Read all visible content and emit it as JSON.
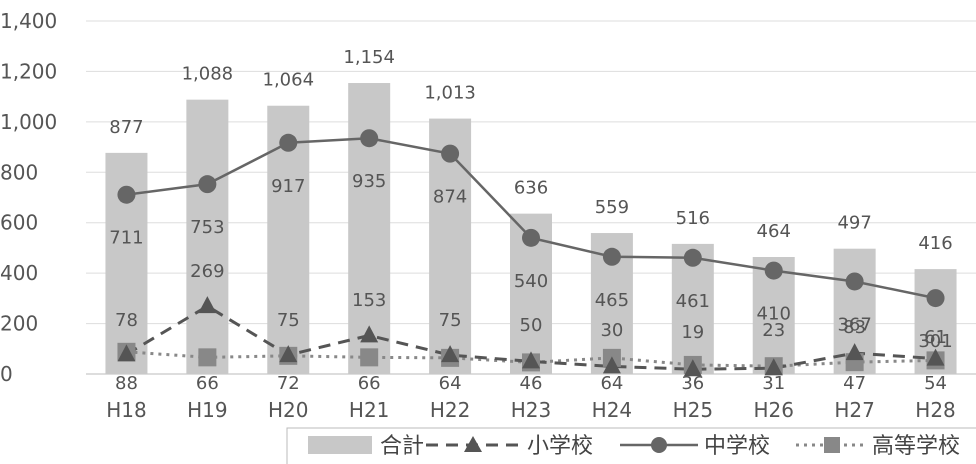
{
  "chart_data": {
    "type": "bar",
    "categories": [
      "H18",
      "H19",
      "H20",
      "H21",
      "H22",
      "H23",
      "H24",
      "H25",
      "H26",
      "H27",
      "H28"
    ],
    "ylim": [
      0,
      1400
    ],
    "y_ticks": [
      0,
      200,
      400,
      600,
      800,
      1000,
      1200,
      1400
    ],
    "y_tick_labels": [
      "0",
      "200",
      "400",
      "600",
      "800",
      "1,000",
      "1,200",
      "1,400"
    ],
    "grid": "horizontal",
    "legend_position": "bottom-right",
    "series": [
      {
        "name": "合計",
        "kind": "bar",
        "color": "#c8c8c8",
        "values": [
          877,
          1088,
          1064,
          1154,
          1013,
          636,
          559,
          516,
          464,
          497,
          416
        ],
        "labels": [
          "877",
          "1,088",
          "1,064",
          "1,154",
          "1,013",
          "636",
          "559",
          "516",
          "464",
          "497",
          "416"
        ]
      },
      {
        "name": "小学校",
        "kind": "line",
        "marker": "triangle",
        "line_style": "dashed",
        "color": "#555555",
        "values": [
          78,
          269,
          75,
          153,
          75,
          50,
          30,
          19,
          23,
          83,
          61
        ],
        "labels": [
          "78",
          "269",
          "75",
          "153",
          "75",
          "50",
          "30",
          "19",
          "23",
          "83",
          "61"
        ]
      },
      {
        "name": "中学校",
        "kind": "line",
        "marker": "circle",
        "line_style": "solid",
        "color": "#666666",
        "values": [
          711,
          753,
          917,
          935,
          874,
          540,
          465,
          461,
          410,
          367,
          301
        ],
        "labels": [
          "711",
          "753",
          "917",
          "935",
          "874",
          "540",
          "465",
          "461",
          "410",
          "367",
          "301"
        ]
      },
      {
        "name": "高等学校",
        "kind": "line",
        "marker": "square",
        "line_style": "dotted",
        "color": "#888888",
        "values": [
          88,
          66,
          72,
          66,
          64,
          46,
          64,
          36,
          31,
          47,
          54
        ],
        "labels": [
          "88",
          "66",
          "72",
          "66",
          "64",
          "46",
          "64",
          "36",
          "31",
          "47",
          "54"
        ]
      }
    ]
  }
}
